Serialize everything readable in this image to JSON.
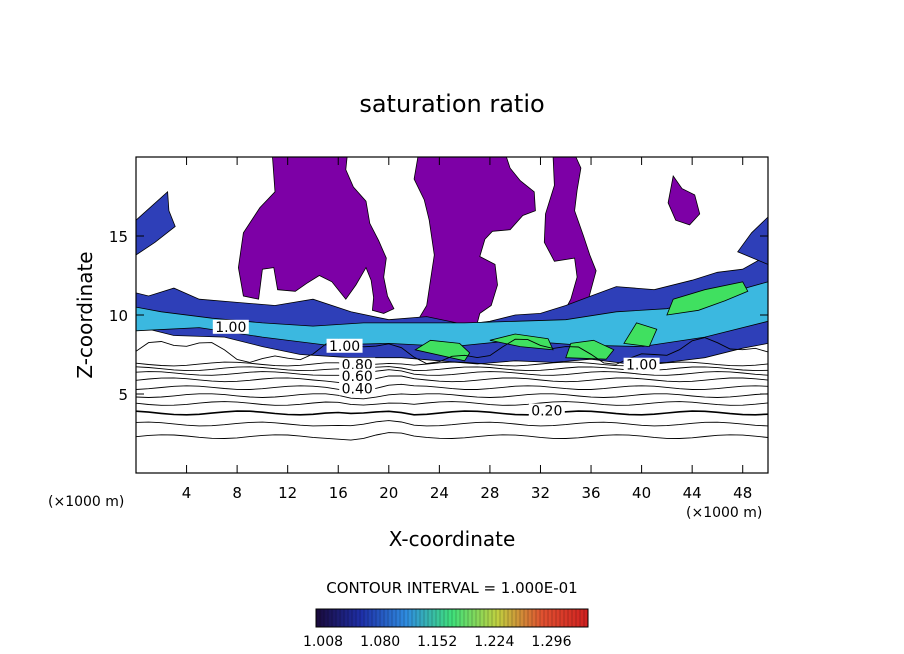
{
  "chart_data": {
    "type": "contour",
    "title": "saturation ratio",
    "xlabel": "X-coordinate",
    "ylabel": "Z-coordinate",
    "x_unit": "(×1000 m)",
    "y_unit": "(×1000 m)",
    "xlim": [
      0,
      50
    ],
    "ylim": [
      0,
      20
    ],
    "x_ticks": [
      {
        "value": 4,
        "label": "4"
      },
      {
        "value": 8,
        "label": "8"
      },
      {
        "value": 12,
        "label": "12"
      },
      {
        "value": 16,
        "label": "16"
      },
      {
        "value": 20,
        "label": "20"
      },
      {
        "value": 24,
        "label": "24"
      },
      {
        "value": 28,
        "label": "28"
      },
      {
        "value": 32,
        "label": "32"
      },
      {
        "value": 36,
        "label": "36"
      },
      {
        "value": 40,
        "label": "40"
      },
      {
        "value": 44,
        "label": "44"
      },
      {
        "value": 48,
        "label": "48"
      }
    ],
    "y_ticks": [
      {
        "value": 5,
        "label": "5"
      },
      {
        "value": 10,
        "label": "10"
      },
      {
        "value": 15,
        "label": "15"
      }
    ],
    "contour_interval_text": "CONTOUR INTERVAL = 1.000E-01",
    "contour_labels": [
      {
        "text": "1.00",
        "x": 7.5,
        "y": 9.0
      },
      {
        "text": "1.00",
        "x": 16.5,
        "y": 7.8
      },
      {
        "text": "0.80",
        "x": 17.5,
        "y": 6.6
      },
      {
        "text": "0.60",
        "x": 17.5,
        "y": 5.9
      },
      {
        "text": "0.40",
        "x": 17.5,
        "y": 5.1
      },
      {
        "text": "0.20",
        "x": 32.5,
        "y": 3.7
      },
      {
        "text": "1.00",
        "x": 40.0,
        "y": 6.6
      }
    ],
    "colorbar": {
      "ticks": [
        "1.008",
        "1.080",
        "1.152",
        "1.224",
        "1.296"
      ],
      "colors": [
        "#1a0a3a",
        "#1e2fa8",
        "#2f8de0",
        "#3fe07a",
        "#c0d040",
        "#e05030",
        "#d02020"
      ]
    },
    "colors": {
      "supersaturated_fill": "#7d00a6",
      "low_band": "#2e3fb8",
      "mid_band": "#3bb8e0",
      "high_band": "#40e060"
    }
  }
}
